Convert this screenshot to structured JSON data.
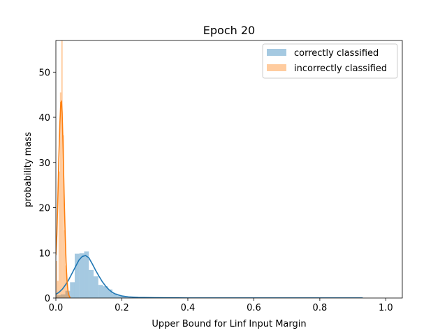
{
  "chart_data": {
    "type": "histogram",
    "title": "Epoch  20",
    "xlabel": "Upper Bound for Linf Input Margin",
    "ylabel": "probability mass",
    "xlim": [
      0,
      1.05
    ],
    "ylim": [
      0,
      57
    ],
    "xticks": [
      0.0,
      0.2,
      0.4,
      0.6,
      0.8,
      1.0
    ],
    "xtick_labels": [
      "0.0",
      "0.2",
      "0.4",
      "0.6",
      "0.8",
      "1.0"
    ],
    "yticks": [
      0,
      10,
      20,
      30,
      40,
      50
    ],
    "ytick_labels": [
      "0",
      "10",
      "20",
      "30",
      "40",
      "50"
    ],
    "grid": false,
    "legend_position": "top-right",
    "series": [
      {
        "name": "correctly classified",
        "color": "#1f77b4",
        "bin_width": 0.0143,
        "bins": [
          {
            "x": 0.0,
            "y": 0.6
          },
          {
            "x": 0.0143,
            "y": 0.8
          },
          {
            "x": 0.0286,
            "y": 1.6
          },
          {
            "x": 0.0429,
            "y": 3.5
          },
          {
            "x": 0.0571,
            "y": 9.8
          },
          {
            "x": 0.0714,
            "y": 9.9
          },
          {
            "x": 0.0857,
            "y": 10.3
          },
          {
            "x": 0.1,
            "y": 6.2
          },
          {
            "x": 0.1143,
            "y": 4.8
          },
          {
            "x": 0.1286,
            "y": 2.9
          },
          {
            "x": 0.1429,
            "y": 2.6
          },
          {
            "x": 0.1571,
            "y": 1.9
          },
          {
            "x": 0.1714,
            "y": 1.0
          },
          {
            "x": 0.1857,
            "y": 0.6
          },
          {
            "x": 0.2,
            "y": 0.3
          },
          {
            "x": 0.2143,
            "y": 0.2
          },
          {
            "x": 0.2286,
            "y": 0.1
          },
          {
            "x": 0.2429,
            "y": 0.1
          }
        ],
        "kde": [
          [
            0.0,
            0.8
          ],
          [
            0.01,
            1.3
          ],
          [
            0.02,
            2.0
          ],
          [
            0.03,
            3.0
          ],
          [
            0.04,
            4.2
          ],
          [
            0.05,
            5.6
          ],
          [
            0.06,
            7.0
          ],
          [
            0.07,
            8.4
          ],
          [
            0.08,
            9.2
          ],
          [
            0.09,
            9.4
          ],
          [
            0.1,
            8.9
          ],
          [
            0.11,
            7.6
          ],
          [
            0.12,
            6.2
          ],
          [
            0.13,
            4.9
          ],
          [
            0.14,
            3.7
          ],
          [
            0.15,
            2.7
          ],
          [
            0.16,
            1.9
          ],
          [
            0.17,
            1.3
          ],
          [
            0.18,
            0.9
          ],
          [
            0.2,
            0.45
          ],
          [
            0.22,
            0.25
          ],
          [
            0.25,
            0.12
          ],
          [
            0.3,
            0.06
          ],
          [
            0.4,
            0.02
          ],
          [
            0.6,
            0.02
          ],
          [
            0.8,
            0.02
          ],
          [
            0.93,
            0.01
          ]
        ]
      },
      {
        "name": "incorrectly classified",
        "color": "#ff7f0e",
        "bin_width": 0.0041,
        "bins": [
          {
            "x": 0.0,
            "y": 8.2
          },
          {
            "x": 0.0041,
            "y": 3.8
          },
          {
            "x": 0.0082,
            "y": 28.0
          },
          {
            "x": 0.0123,
            "y": 45.5
          },
          {
            "x": 0.0164,
            "y": 57.0
          },
          {
            "x": 0.0205,
            "y": 36.0
          },
          {
            "x": 0.0246,
            "y": 15.0
          },
          {
            "x": 0.0287,
            "y": 7.2
          },
          {
            "x": 0.0328,
            "y": 3.4
          },
          {
            "x": 0.0369,
            "y": 1.2
          },
          {
            "x": 0.041,
            "y": 0.3
          }
        ],
        "kde": [
          [
            0.0,
            9.5
          ],
          [
            0.003,
            14.0
          ],
          [
            0.006,
            22.0
          ],
          [
            0.009,
            31.0
          ],
          [
            0.012,
            38.5
          ],
          [
            0.015,
            43.3
          ],
          [
            0.017,
            43.5
          ],
          [
            0.019,
            41.0
          ],
          [
            0.022,
            33.0
          ],
          [
            0.025,
            23.0
          ],
          [
            0.028,
            14.5
          ],
          [
            0.031,
            7.8
          ],
          [
            0.034,
            3.5
          ],
          [
            0.037,
            1.4
          ],
          [
            0.04,
            0.5
          ],
          [
            0.043,
            0.1
          ]
        ]
      }
    ]
  }
}
